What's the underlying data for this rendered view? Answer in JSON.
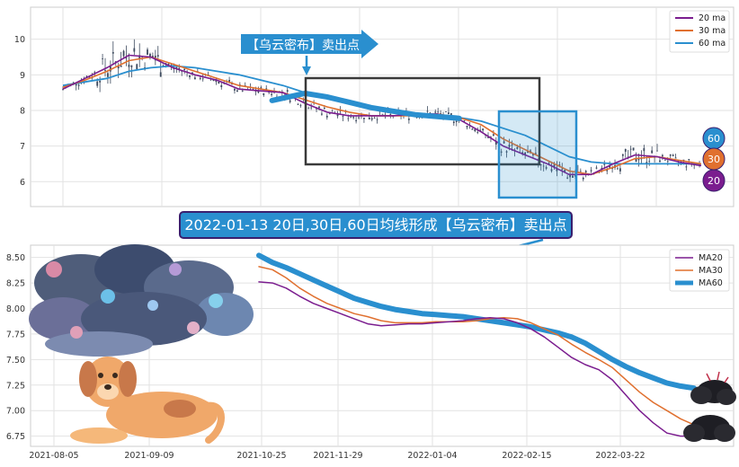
{
  "colors": {
    "ma20": "#7b1d8f",
    "ma30": "#e0702f",
    "ma60": "#2a8fcf",
    "candle": "#3d4a5e",
    "banner_bg": "#2a8fcf",
    "banner_border": "#3a1f6e",
    "box_dark": "#3a3a3a",
    "box_blue": "#2a8fcf"
  },
  "annotations": {
    "top_arrow_label": "【乌云密布】卖出点",
    "banner": "2022-01-13 20日,30日,60日均线形成【乌云密布】卖出点"
  },
  "chart_data": [
    {
      "type": "line",
      "panel": "top",
      "ylim": [
        5.3,
        10.9
      ],
      "yticks": [
        "6",
        "7",
        "8",
        "9",
        "10"
      ],
      "grid": true,
      "legend_position": "top-right",
      "series": [
        {
          "name": "20 ma",
          "color": "#7b1d8f"
        },
        {
          "name": "30 ma",
          "color": "#e0702f"
        },
        {
          "name": "60 ma",
          "color": "#2a8fcf"
        }
      ],
      "badges": [
        "60",
        "30",
        "20"
      ],
      "ma_paths": {
        "ma60": [
          [
            0,
            8.7
          ],
          [
            10,
            8.8
          ],
          [
            20,
            8.9
          ],
          [
            30,
            9.1
          ],
          [
            40,
            9.2
          ],
          [
            50,
            9.25
          ],
          [
            60,
            9.2
          ],
          [
            70,
            9.1
          ],
          [
            80,
            9.0
          ],
          [
            90,
            8.85
          ],
          [
            100,
            8.7
          ],
          [
            110,
            8.5
          ],
          [
            120,
            8.4
          ],
          [
            130,
            8.25
          ],
          [
            140,
            8.1
          ],
          [
            150,
            8.0
          ],
          [
            160,
            7.9
          ],
          [
            170,
            7.85
          ],
          [
            180,
            7.8
          ],
          [
            190,
            7.7
          ],
          [
            200,
            7.5
          ],
          [
            210,
            7.3
          ],
          [
            220,
            7.0
          ],
          [
            230,
            6.7
          ],
          [
            240,
            6.55
          ],
          [
            250,
            6.5
          ],
          [
            260,
            6.5
          ],
          [
            270,
            6.5
          ],
          [
            280,
            6.5
          ],
          [
            290,
            6.5
          ]
        ],
        "ma30": [
          [
            0,
            8.65
          ],
          [
            10,
            8.85
          ],
          [
            20,
            9.1
          ],
          [
            30,
            9.4
          ],
          [
            40,
            9.5
          ],
          [
            50,
            9.3
          ],
          [
            60,
            9.1
          ],
          [
            70,
            8.9
          ],
          [
            80,
            8.7
          ],
          [
            90,
            8.6
          ],
          [
            100,
            8.5
          ],
          [
            110,
            8.3
          ],
          [
            120,
            8.1
          ],
          [
            130,
            7.95
          ],
          [
            140,
            7.85
          ],
          [
            150,
            7.85
          ],
          [
            160,
            7.85
          ],
          [
            170,
            7.9
          ],
          [
            180,
            7.8
          ],
          [
            190,
            7.6
          ],
          [
            200,
            7.2
          ],
          [
            210,
            6.9
          ],
          [
            220,
            6.6
          ],
          [
            230,
            6.3
          ],
          [
            240,
            6.2
          ],
          [
            250,
            6.4
          ],
          [
            260,
            6.65
          ],
          [
            270,
            6.7
          ],
          [
            280,
            6.6
          ],
          [
            290,
            6.5
          ]
        ],
        "ma20": [
          [
            0,
            8.6
          ],
          [
            10,
            8.9
          ],
          [
            20,
            9.2
          ],
          [
            30,
            9.55
          ],
          [
            40,
            9.5
          ],
          [
            50,
            9.2
          ],
          [
            60,
            9.0
          ],
          [
            70,
            8.85
          ],
          [
            80,
            8.6
          ],
          [
            90,
            8.55
          ],
          [
            100,
            8.5
          ],
          [
            110,
            8.2
          ],
          [
            120,
            7.95
          ],
          [
            130,
            7.85
          ],
          [
            140,
            7.85
          ],
          [
            150,
            7.85
          ],
          [
            160,
            7.9
          ],
          [
            170,
            7.9
          ],
          [
            180,
            7.75
          ],
          [
            190,
            7.4
          ],
          [
            200,
            7.0
          ],
          [
            210,
            6.75
          ],
          [
            220,
            6.5
          ],
          [
            230,
            6.2
          ],
          [
            240,
            6.2
          ],
          [
            250,
            6.5
          ],
          [
            260,
            6.75
          ],
          [
            270,
            6.7
          ],
          [
            280,
            6.55
          ],
          [
            290,
            6.45
          ]
        ]
      }
    },
    {
      "type": "line",
      "panel": "bottom",
      "ylim": [
        6.65,
        8.62
      ],
      "yticks": [
        "6.75",
        "7.00",
        "7.25",
        "7.50",
        "7.75",
        "8.00",
        "8.25",
        "8.50"
      ],
      "xticks": [
        "2021-08-05",
        "2021-09-09",
        "2021-10-25",
        "2021-11-29",
        "2022-01-04",
        "2022-02-15",
        "2022-03-22"
      ],
      "grid": true,
      "legend_position": "top-right",
      "series": [
        {
          "name": "MA20",
          "color": "#7b1d8f",
          "values": [
            8.26,
            8.25,
            8.2,
            8.12,
            8.05,
            8.0,
            7.95,
            7.9,
            7.85,
            7.83,
            7.84,
            7.85,
            7.85,
            7.86,
            7.87,
            7.88,
            7.9,
            7.91,
            7.9,
            7.86,
            7.8,
            7.72,
            7.62,
            7.52,
            7.45,
            7.4,
            7.3,
            7.15,
            7.0,
            6.88,
            6.78,
            6.75,
            6.75
          ]
        },
        {
          "name": "MA30",
          "color": "#e0702f",
          "values": [
            8.41,
            8.38,
            8.3,
            8.2,
            8.12,
            8.05,
            8.0,
            7.95,
            7.92,
            7.88,
            7.86,
            7.86,
            7.86,
            7.87,
            7.87,
            7.87,
            7.88,
            7.9,
            7.91,
            7.9,
            7.86,
            7.8,
            7.74,
            7.65,
            7.57,
            7.5,
            7.42,
            7.3,
            7.18,
            7.08,
            7.0,
            6.92,
            6.86
          ]
        },
        {
          "name": "MA60",
          "color": "#2a8fcf",
          "values": [
            8.52,
            8.45,
            8.4,
            8.34,
            8.28,
            8.22,
            8.16,
            8.1,
            8.06,
            8.02,
            7.99,
            7.97,
            7.95,
            7.94,
            7.93,
            7.92,
            7.9,
            7.88,
            7.86,
            7.84,
            7.82,
            7.79,
            7.76,
            7.72,
            7.66,
            7.58,
            7.5,
            7.43,
            7.37,
            7.32,
            7.27,
            7.24,
            7.22
          ]
        }
      ]
    }
  ]
}
